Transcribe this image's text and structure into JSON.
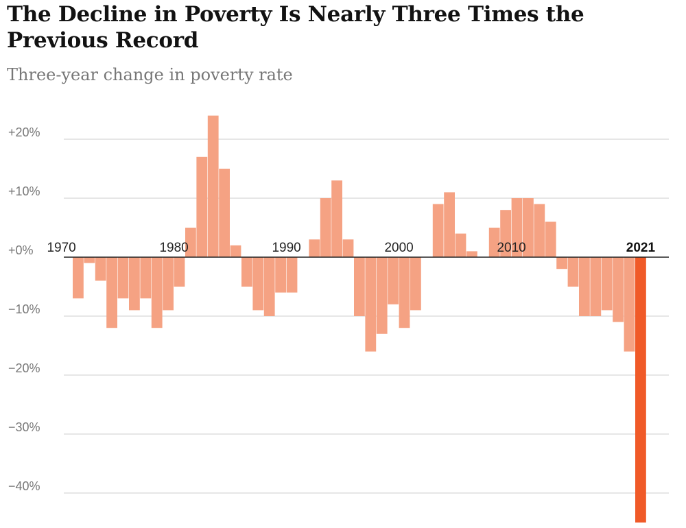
{
  "title": "The Decline in Poverty Is Nearly Three Times the Previous Record",
  "subtitle": "Three-year change in poverty rate",
  "colors": {
    "bar": "#f5a283",
    "highlight": "#f05a28",
    "grid": "#cccccc",
    "zero_line": "#222222"
  },
  "chart_data": {
    "type": "bar",
    "title": "The Decline in Poverty Is Nearly Three Times the Previous Record",
    "subtitle": "Three-year change in poverty rate",
    "xlabel": "",
    "ylabel": "",
    "ylim": [
      -45,
      24
    ],
    "grid": true,
    "y_ticks": [
      20,
      10,
      0,
      -10,
      -20,
      -30,
      -40
    ],
    "y_tick_labels": [
      "+20%",
      "+10%",
      "+0%",
      "−10%",
      "−20%",
      "−30%",
      "−40%"
    ],
    "x_tick_labels": [
      {
        "year": 1970,
        "label": "1970"
      },
      {
        "year": 1980,
        "label": "1980"
      },
      {
        "year": 1990,
        "label": "1990"
      },
      {
        "year": 2000,
        "label": "2000"
      },
      {
        "year": 2010,
        "label": "2010"
      },
      {
        "year": 2021,
        "label": "2021",
        "bold": true
      }
    ],
    "highlight_year": 2021,
    "x": [
      1971,
      1972,
      1973,
      1974,
      1975,
      1976,
      1977,
      1978,
      1979,
      1980,
      1981,
      1982,
      1983,
      1984,
      1985,
      1986,
      1987,
      1988,
      1989,
      1990,
      1991,
      1992,
      1993,
      1994,
      1995,
      1996,
      1997,
      1998,
      1999,
      2000,
      2001,
      2002,
      2003,
      2004,
      2005,
      2006,
      2007,
      2008,
      2009,
      2010,
      2011,
      2012,
      2013,
      2014,
      2015,
      2016,
      2017,
      2018,
      2019,
      2020,
      2021
    ],
    "values": [
      -7,
      -1,
      -4,
      -12,
      -7,
      -9,
      -7,
      -12,
      -9,
      -5,
      5,
      17,
      24,
      15,
      2,
      -5,
      -9,
      -10,
      -6,
      -6,
      0,
      3,
      10,
      13,
      3,
      -10,
      -16,
      -13,
      -8,
      -12,
      -9,
      0,
      9,
      11,
      4,
      1,
      0,
      5,
      8,
      10,
      10,
      9,
      6,
      -2,
      -5,
      -10,
      -10,
      -9,
      -11,
      -16,
      -45
    ]
  }
}
